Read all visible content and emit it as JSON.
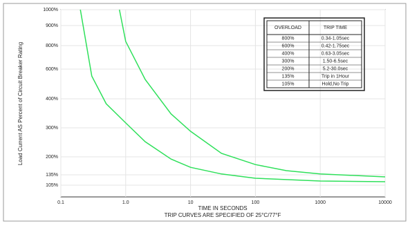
{
  "chart_data": {
    "type": "line",
    "xlabel": "TIME IN SECONDS",
    "subtitle": "TRIP CURVES ARE SPECIFIED OF 25°C/77°F",
    "ylabel": "Load Current AS Percent of Circuit Breaker Rating",
    "xscale": "log",
    "xlim": [
      0.1,
      10000
    ],
    "xticks": [
      0.1,
      {
        "value": 1,
        "label": "1.0"
      },
      10,
      100,
      1000,
      10000
    ],
    "yticks": [
      {
        "value": 1000,
        "label": "1000%"
      },
      {
        "value": 900,
        "label": "900%"
      },
      {
        "value": 800,
        "label": "800%"
      },
      {
        "value": 600,
        "label": "600%"
      },
      {
        "value": 400,
        "label": "400%"
      },
      {
        "value": 300,
        "label": "300%"
      },
      {
        "value": 200,
        "label": "200%"
      },
      {
        "value": 135,
        "label": "135%"
      },
      {
        "value": 105,
        "label": "105%"
      }
    ],
    "grid": true,
    "series": [
      {
        "color": "#2ee05a",
        "x": [
          0.2,
          0.3,
          0.5,
          1,
          2,
          5,
          10,
          30,
          100,
          1000,
          10000
        ],
        "values": [
          1000,
          553,
          383,
          317,
          252,
          192,
          162,
          138,
          125,
          117,
          115
        ]
      },
      {
        "color": "#2ee05a",
        "x": [
          0.8,
          1,
          2,
          5,
          10,
          30,
          100,
          300,
          1000,
          10000
        ],
        "values": [
          1000,
          821,
          530,
          348,
          288,
          212,
          172,
          150,
          138,
          129
        ]
      }
    ],
    "table": {
      "header": [
        "OVERLOAD",
        "TRIP TIME"
      ],
      "rows": [
        [
          "800%",
          "0.34-1.05sec"
        ],
        [
          "600%",
          "0.42-1.75sec"
        ],
        [
          "400%",
          "0.63-3.05sec"
        ],
        [
          "300%",
          "1.50-6.5sec"
        ],
        [
          "200%",
          "5.2-30.0sec"
        ],
        [
          "135%",
          "Trip in 1Hour"
        ],
        [
          "105%",
          "Hold,No Trip"
        ]
      ]
    }
  }
}
